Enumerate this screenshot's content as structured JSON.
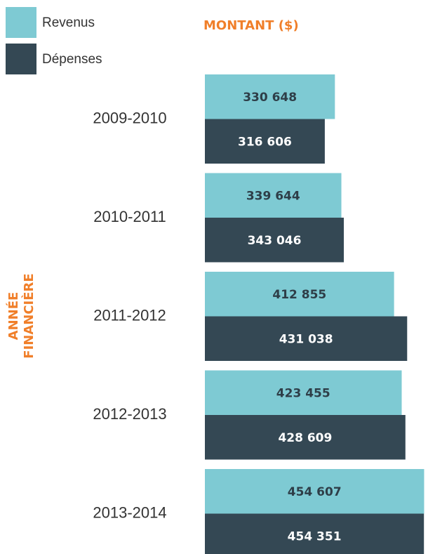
{
  "chart_data": {
    "type": "bar",
    "orientation": "horizontal",
    "xlabel": "MONTANT ($)",
    "ylabel": [
      "ANNÉE",
      "FINANCIÈRE"
    ],
    "categories": [
      "2009-2010",
      "2010-2011",
      "2011-2012",
      "2012-2013",
      "2013-2014"
    ],
    "xlim": [
      150000,
      460000
    ],
    "series": [
      {
        "name": "Revenus",
        "color": "#7ecad3",
        "label_color": "#2e3e48",
        "values": [
          330648,
          339644,
          412855,
          423455,
          454607
        ],
        "value_labels": [
          "330 648",
          "339 644",
          "412 855",
          "423 455",
          "454 607"
        ]
      },
      {
        "name": "Dépenses",
        "color": "#344854",
        "label_color": "#ffffff",
        "values": [
          316606,
          343046,
          431038,
          428609,
          454351
        ],
        "value_labels": [
          "316 606",
          "343 046",
          "431 038",
          "428 609",
          "454 351"
        ]
      }
    ]
  }
}
